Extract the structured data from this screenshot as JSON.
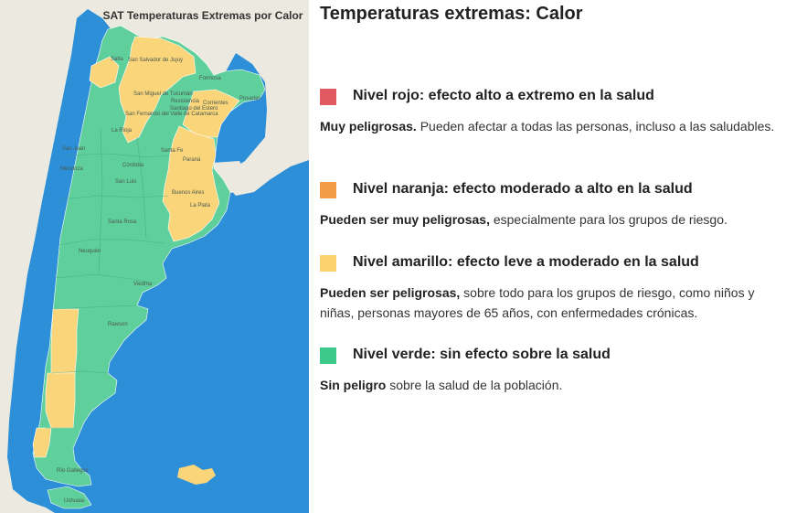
{
  "page": {
    "title": "Temperaturas extremas: Calor"
  },
  "map": {
    "title": "SAT Temperaturas Extremas por Calor",
    "colors": {
      "sea": "#2c8fd8",
      "land_outside": "#eceae0",
      "green": "#5fcf9c",
      "yellow": "#fbd57a"
    },
    "places": [
      "Salta",
      "San Salvador de Jujuy",
      "Formosa",
      "San Miguel de Tucumán",
      "Resistencia",
      "Corrientes",
      "Posadas",
      "Santiago del Estero",
      "San Fernando del Valle de Catamarca",
      "La Rioja",
      "San Juan",
      "Santa Fe",
      "Paraná",
      "Córdoba",
      "Mendoza",
      "San Luis",
      "Buenos Aires",
      "La Plata",
      "Santa Rosa",
      "Neuquén",
      "Viedma",
      "Rawson",
      "Río Gallegos",
      "Ushuaia"
    ]
  },
  "legend": {
    "levels": [
      {
        "color": "#e05a62",
        "name": "Nivel rojo: efecto alto a extremo en la salud",
        "desc_bold": "Muy peligrosas.",
        "desc_rest": " Pueden afectar a todas las personas, incluso a las saludables."
      },
      {
        "color": "#f29a45",
        "name": "Nivel naranja: efecto moderado a alto en la salud",
        "desc_bold": "Pueden ser muy peligrosas,",
        "desc_rest": " especialmente para los grupos de riesgo."
      },
      {
        "color": "#fbd26e",
        "name": "Nivel amarillo: efecto leve a moderado en la salud",
        "desc_bold": "Pueden ser peligrosas,",
        "desc_rest": " sobre todo para los grupos de riesgo, como niños y niñas, personas mayores de 65 años, con enfermedades crónicas."
      },
      {
        "color": "#3cc98a",
        "name": "Nivel verde: sin efecto sobre la salud",
        "desc_bold": "Sin peligro",
        "desc_rest": " sobre la salud de la población."
      }
    ]
  }
}
